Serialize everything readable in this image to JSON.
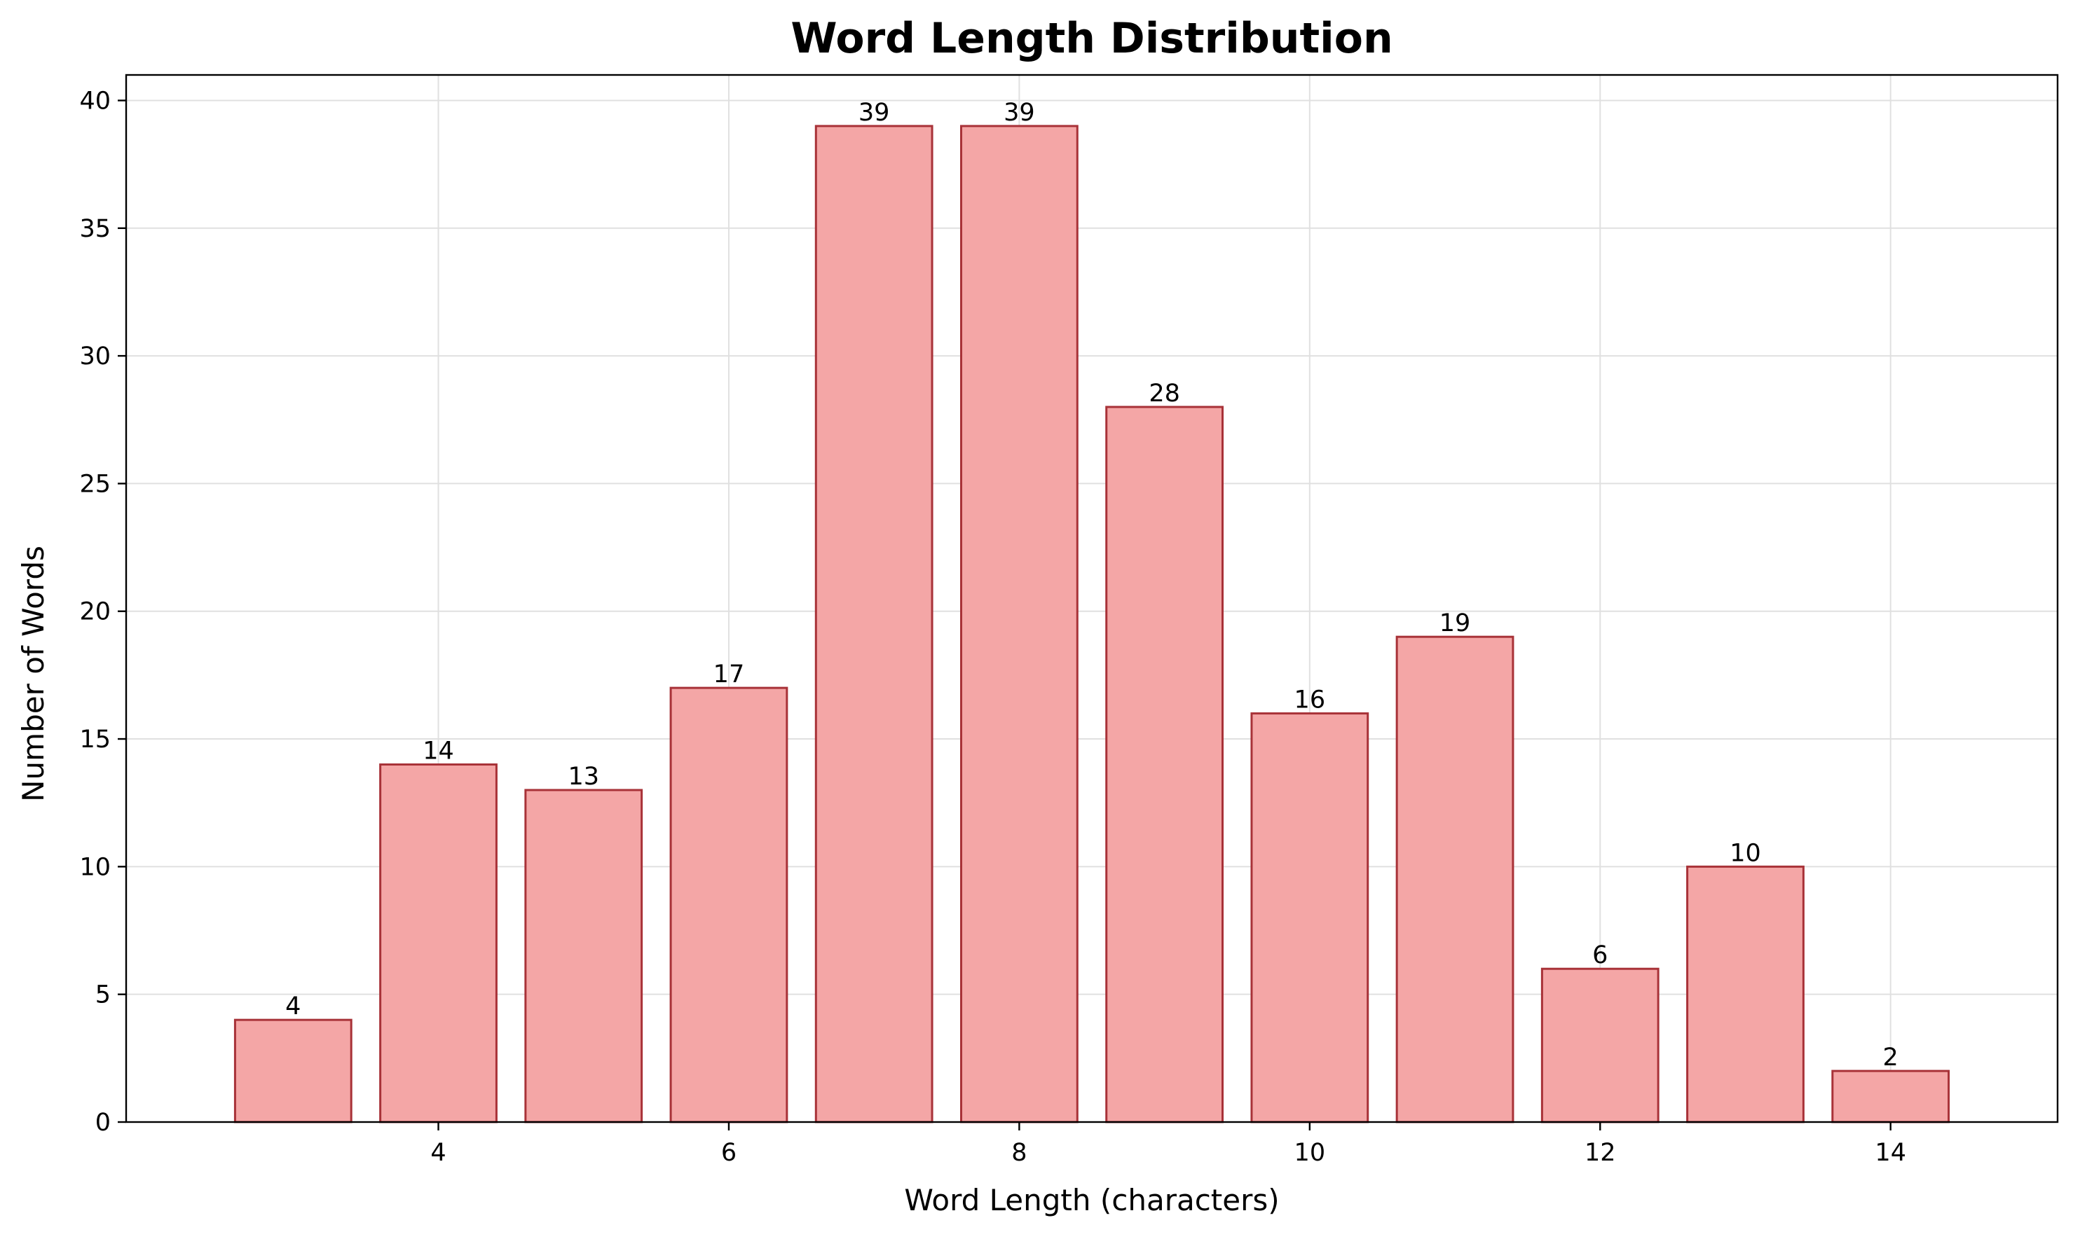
{
  "chart_data": {
    "type": "bar",
    "title": "Word Length Distribution",
    "xlabel": "Word Length (characters)",
    "ylabel": "Number of Words",
    "categories": [
      3,
      4,
      5,
      6,
      7,
      8,
      9,
      10,
      11,
      12,
      13,
      14
    ],
    "values": [
      4,
      14,
      13,
      17,
      39,
      39,
      28,
      16,
      19,
      6,
      10,
      2
    ],
    "xlim": [
      1.85,
      15.15
    ],
    "ylim": [
      0,
      41
    ],
    "xticks": [
      4,
      6,
      8,
      10,
      12,
      14
    ],
    "yticks": [
      0,
      5,
      10,
      15,
      20,
      25,
      30,
      35,
      40
    ],
    "bar_width": 0.8,
    "grid": true,
    "colors": {
      "bar_fill": "#f4a6a6",
      "bar_edge": "#a83238",
      "grid": "#e0e0e0"
    }
  }
}
